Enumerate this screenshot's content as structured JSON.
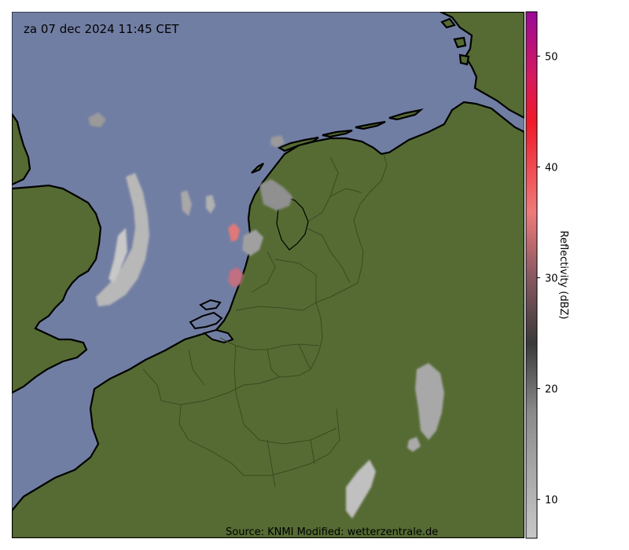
{
  "map": {
    "timestamp": "za 07 dec 2024 11:45 CET",
    "source": "Source: KNMI Modified: wetterzentrale.de",
    "colors": {
      "sea": "#717ea3",
      "land": "#556b33",
      "coast": "#000000",
      "border": "#3b4a22"
    }
  },
  "colorbar": {
    "label": "Reflectivity (dBZ)",
    "range": [
      6.5,
      54
    ],
    "ticks": [
      10,
      20,
      30,
      40,
      50
    ],
    "stops": [
      {
        "value": 6.5,
        "color": "#c8c8c8"
      },
      {
        "value": 18,
        "color": "#8a8a8a"
      },
      {
        "value": 24,
        "color": "#3a3a3a"
      },
      {
        "value": 30,
        "color": "#8a5a62"
      },
      {
        "value": 36,
        "color": "#f07a7a"
      },
      {
        "value": 44,
        "color": "#ef1a2a"
      },
      {
        "value": 48,
        "color": "#d81a5a"
      },
      {
        "value": 54,
        "color": "#9a0a98"
      }
    ]
  }
}
